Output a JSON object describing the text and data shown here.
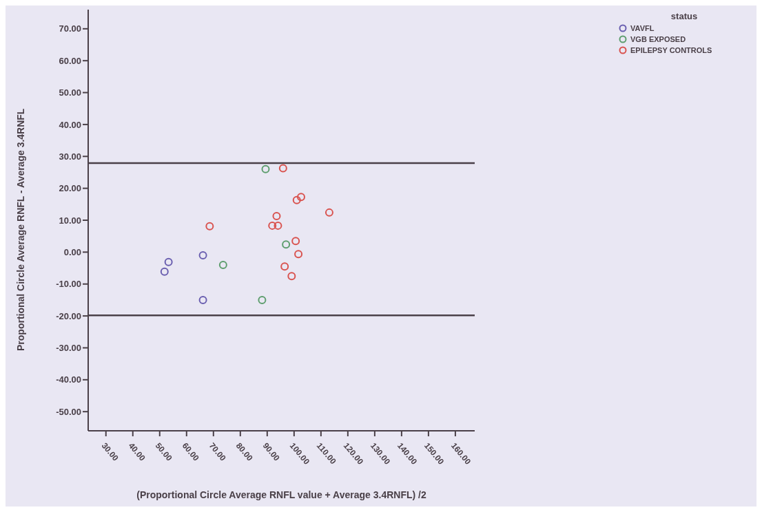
{
  "chart_data": {
    "type": "scatter",
    "xlabel": "(Proportional Circle Average RNFL value + Average 3.4RNFL) /2",
    "ylabel": "Proportional Circle Average RNFL - Average 3.4RNFL",
    "legend_title": "status",
    "legend": "top right",
    "marker": "circle",
    "grid": false,
    "xlim": [
      23.4,
      167.2
    ],
    "xticks": [
      {
        "value": 30,
        "label": "30.00"
      },
      {
        "value": 40,
        "label": "40.00"
      },
      {
        "value": 50,
        "label": "50.00"
      },
      {
        "value": 60,
        "label": "60.00"
      },
      {
        "value": 70,
        "label": "70.00"
      },
      {
        "value": 80,
        "label": "80.00"
      },
      {
        "value": 90,
        "label": "90.00"
      },
      {
        "value": 100,
        "label": "100.00"
      },
      {
        "value": 110,
        "label": "110.00"
      },
      {
        "value": 120,
        "label": "120.00"
      },
      {
        "value": 130,
        "label": "130.00"
      },
      {
        "value": 140,
        "label": "140.00"
      },
      {
        "value": 150,
        "label": "150.00"
      },
      {
        "value": 160,
        "label": "160.00"
      }
    ],
    "ylim": [
      -56,
      76
    ],
    "yticks": [
      {
        "value": -50,
        "label": "-50.00"
      },
      {
        "value": -40,
        "label": "-40.00"
      },
      {
        "value": -30,
        "label": "-30.00"
      },
      {
        "value": -20,
        "label": "-20.00"
      },
      {
        "value": -10,
        "label": "-10.00"
      },
      {
        "value": 0,
        "label": "0.00"
      },
      {
        "value": 10,
        "label": "10.00"
      },
      {
        "value": 20,
        "label": "20.00"
      },
      {
        "value": 30,
        "label": "30.00"
      },
      {
        "value": 40,
        "label": "40.00"
      },
      {
        "value": 50,
        "label": "50.00"
      },
      {
        "value": 60,
        "label": "60.00"
      },
      {
        "value": 70,
        "label": "70.00"
      }
    ],
    "ref_lines": [
      {
        "axis": "y",
        "value": 27.9,
        "color": "#4a4048"
      },
      {
        "axis": "y",
        "value": -19.8,
        "color": "#4a4048"
      }
    ],
    "series": [
      {
        "name": "VAVFL",
        "color": "#6a5fb0",
        "x": [
          51.8,
          53.3,
          66.1,
          66.1
        ],
        "values": [
          -6.1,
          -3.1,
          -1.0,
          -15.0
        ]
      },
      {
        "name": "VGB EXPOSED",
        "color": "#5e9e6e",
        "x": [
          73.6,
          88.1,
          89.4,
          97.0
        ],
        "values": [
          -4.0,
          -15.0,
          26.0,
          2.4
        ]
      },
      {
        "name": "EPILEPSY CONTROLS",
        "color": "#d9534f",
        "x": [
          68.6,
          95.9,
          101.0,
          102.6,
          93.5,
          91.9,
          94.0,
          113.1,
          100.6,
          101.6,
          96.5,
          99.1
        ],
        "values": [
          8.1,
          26.3,
          16.3,
          17.3,
          11.3,
          8.3,
          8.3,
          12.4,
          3.5,
          -0.6,
          -4.5,
          -7.5
        ]
      }
    ]
  }
}
